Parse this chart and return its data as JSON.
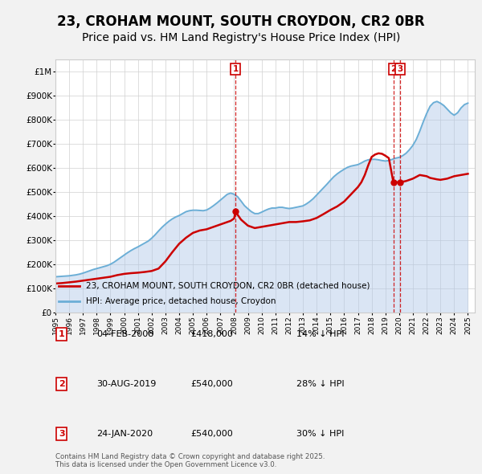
{
  "title": "23, CROHAM MOUNT, SOUTH CROYDON, CR2 0BR",
  "subtitle": "Price paid vs. HM Land Registry's House Price Index (HPI)",
  "title_fontsize": 12,
  "subtitle_fontsize": 10,
  "background_color": "#f2f2f2",
  "plot_bg_color": "#ffffff",
  "ylim": [
    0,
    1050000
  ],
  "yticks": [
    0,
    100000,
    200000,
    300000,
    400000,
    500000,
    600000,
    700000,
    800000,
    900000,
    1000000
  ],
  "ytick_labels": [
    "£0",
    "£100K",
    "£200K",
    "£300K",
    "£400K",
    "£500K",
    "£600K",
    "£700K",
    "£800K",
    "£900K",
    "£1M"
  ],
  "hpi_color": "#aec6e8",
  "hpi_line_color": "#6baed6",
  "price_color": "#cc0000",
  "dashed_line_color": "#cc0000",
  "annotation_box_color": "#cc0000",
  "sale1_date": 2008.09,
  "sale1_price": 418000,
  "sale1_label": "1",
  "sale2_date": 2019.58,
  "sale2_price": 540000,
  "sale2_label": "2",
  "sale3_date": 2020.07,
  "sale3_price": 540000,
  "sale3_label": "3",
  "legend_label_price": "23, CROHAM MOUNT, SOUTH CROYDON, CR2 0BR (detached house)",
  "legend_label_hpi": "HPI: Average price, detached house, Croydon",
  "table_rows": [
    [
      "1",
      "04-FEB-2008",
      "£418,000",
      "14% ↓ HPI"
    ],
    [
      "2",
      "30-AUG-2019",
      "£540,000",
      "28% ↓ HPI"
    ],
    [
      "3",
      "24-JAN-2020",
      "£540,000",
      "30% ↓ HPI"
    ]
  ],
  "footer_text": "Contains HM Land Registry data © Crown copyright and database right 2025.\nThis data is licensed under the Open Government Licence v3.0.",
  "hpi_data_years": [
    1995.0,
    1995.25,
    1995.5,
    1995.75,
    1996.0,
    1996.25,
    1996.5,
    1996.75,
    1997.0,
    1997.25,
    1997.5,
    1997.75,
    1998.0,
    1998.25,
    1998.5,
    1998.75,
    1999.0,
    1999.25,
    1999.5,
    1999.75,
    2000.0,
    2000.25,
    2000.5,
    2000.75,
    2001.0,
    2001.25,
    2001.5,
    2001.75,
    2002.0,
    2002.25,
    2002.5,
    2002.75,
    2003.0,
    2003.25,
    2003.5,
    2003.75,
    2004.0,
    2004.25,
    2004.5,
    2004.75,
    2005.0,
    2005.25,
    2005.5,
    2005.75,
    2006.0,
    2006.25,
    2006.5,
    2006.75,
    2007.0,
    2007.25,
    2007.5,
    2007.75,
    2008.0,
    2008.25,
    2008.5,
    2008.75,
    2009.0,
    2009.25,
    2009.5,
    2009.75,
    2010.0,
    2010.25,
    2010.5,
    2010.75,
    2011.0,
    2011.25,
    2011.5,
    2011.75,
    2012.0,
    2012.25,
    2012.5,
    2012.75,
    2013.0,
    2013.25,
    2013.5,
    2013.75,
    2014.0,
    2014.25,
    2014.5,
    2014.75,
    2015.0,
    2015.25,
    2015.5,
    2015.75,
    2016.0,
    2016.25,
    2016.5,
    2016.75,
    2017.0,
    2017.25,
    2017.5,
    2017.75,
    2018.0,
    2018.25,
    2018.5,
    2018.75,
    2019.0,
    2019.25,
    2019.5,
    2019.75,
    2020.0,
    2020.25,
    2020.5,
    2020.75,
    2021.0,
    2021.25,
    2021.5,
    2021.75,
    2022.0,
    2022.25,
    2022.5,
    2022.75,
    2023.0,
    2023.25,
    2023.5,
    2023.75,
    2024.0,
    2024.25,
    2024.5,
    2024.75,
    2025.0
  ],
  "hpi_data_values": [
    148000,
    149000,
    150000,
    151000,
    152000,
    154000,
    156000,
    159000,
    163000,
    168000,
    173000,
    178000,
    182000,
    186000,
    190000,
    194000,
    200000,
    208000,
    218000,
    228000,
    238000,
    248000,
    257000,
    265000,
    272000,
    280000,
    288000,
    296000,
    308000,
    322000,
    338000,
    353000,
    366000,
    378000,
    388000,
    396000,
    402000,
    410000,
    418000,
    422000,
    424000,
    424000,
    423000,
    422000,
    425000,
    433000,
    443000,
    454000,
    466000,
    478000,
    490000,
    495000,
    490000,
    480000,
    462000,
    443000,
    430000,
    418000,
    410000,
    410000,
    416000,
    423000,
    429000,
    433000,
    433000,
    436000,
    436000,
    433000,
    431000,
    433000,
    436000,
    439000,
    442000,
    450000,
    460000,
    472000,
    487000,
    502000,
    517000,
    532000,
    548000,
    563000,
    575000,
    585000,
    594000,
    602000,
    607000,
    610000,
    613000,
    620000,
    628000,
    633000,
    635000,
    635000,
    633000,
    630000,
    628000,
    630000,
    635000,
    640000,
    643000,
    650000,
    660000,
    675000,
    693000,
    718000,
    752000,
    790000,
    825000,
    855000,
    870000,
    875000,
    868000,
    858000,
    843000,
    828000,
    818000,
    828000,
    848000,
    862000,
    868000
  ],
  "price_data_years": [
    1995.0,
    1995.5,
    1996.0,
    1996.5,
    1997.0,
    1997.5,
    1998.0,
    1998.5,
    1999.0,
    1999.5,
    2000.0,
    2000.5,
    2001.0,
    2001.5,
    2002.0,
    2002.5,
    2003.0,
    2003.5,
    2004.0,
    2004.5,
    2005.0,
    2005.5,
    2006.0,
    2006.5,
    2007.0,
    2007.25,
    2007.5,
    2007.75,
    2008.0,
    2008.09,
    2008.5,
    2009.0,
    2009.5,
    2010.0,
    2010.5,
    2011.0,
    2011.5,
    2012.0,
    2012.5,
    2013.0,
    2013.5,
    2014.0,
    2014.5,
    2015.0,
    2015.5,
    2016.0,
    2016.5,
    2017.0,
    2017.25,
    2017.5,
    2017.75,
    2018.0,
    2018.25,
    2018.5,
    2018.75,
    2019.0,
    2019.25,
    2019.58,
    2020.07,
    2020.5,
    2021.0,
    2021.5,
    2022.0,
    2022.25,
    2022.5,
    2022.75,
    2023.0,
    2023.5,
    2024.0,
    2024.5,
    2025.0
  ],
  "price_data_values": [
    120000,
    122000,
    125000,
    128000,
    132000,
    136000,
    140000,
    144000,
    148000,
    155000,
    160000,
    163000,
    165000,
    168000,
    172000,
    182000,
    212000,
    250000,
    285000,
    310000,
    330000,
    340000,
    345000,
    355000,
    365000,
    370000,
    375000,
    380000,
    390000,
    418000,
    385000,
    360000,
    350000,
    355000,
    360000,
    365000,
    370000,
    375000,
    375000,
    378000,
    382000,
    392000,
    408000,
    425000,
    440000,
    460000,
    490000,
    520000,
    540000,
    570000,
    610000,
    645000,
    655000,
    660000,
    658000,
    650000,
    640000,
    540000,
    540000,
    545000,
    555000,
    570000,
    565000,
    558000,
    555000,
    552000,
    550000,
    555000,
    565000,
    570000,
    575000
  ]
}
